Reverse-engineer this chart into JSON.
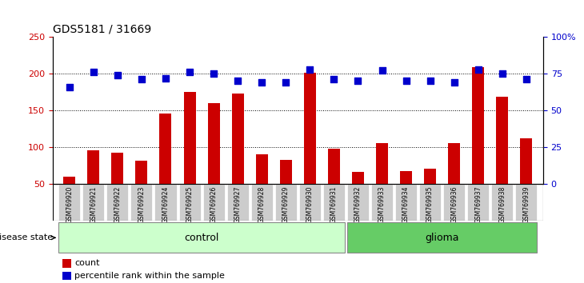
{
  "title": "GDS5181 / 31669",
  "samples": [
    "GSM769920",
    "GSM769921",
    "GSM769922",
    "GSM769923",
    "GSM769924",
    "GSM769925",
    "GSM769926",
    "GSM769927",
    "GSM769928",
    "GSM769929",
    "GSM769930",
    "GSM769931",
    "GSM769932",
    "GSM769933",
    "GSM769934",
    "GSM769935",
    "GSM769936",
    "GSM769937",
    "GSM769938",
    "GSM769939"
  ],
  "counts": [
    60,
    96,
    92,
    82,
    146,
    175,
    160,
    173,
    90,
    83,
    201,
    98,
    66,
    105,
    68,
    71,
    105,
    209,
    168,
    112
  ],
  "percentiles": [
    66,
    76,
    74,
    71,
    72,
    76,
    75,
    70,
    69,
    69,
    78,
    71,
    70,
    77,
    70,
    70,
    69,
    78,
    75,
    71
  ],
  "control_count": 12,
  "glioma_count": 8,
  "bar_color": "#cc0000",
  "dot_color": "#0000cc",
  "ylim_left": [
    50,
    250
  ],
  "ylim_right": [
    0,
    100
  ],
  "yticks_left": [
    50,
    100,
    150,
    200,
    250
  ],
  "yticks_right": [
    0,
    25,
    50,
    75,
    100
  ],
  "yticklabels_right": [
    "0",
    "25",
    "50",
    "75",
    "100%"
  ],
  "grid_values": [
    100,
    150,
    200
  ],
  "control_color": "#ccffcc",
  "glioma_color": "#66cc66",
  "tick_area_color": "#cccccc",
  "disease_state_label": "disease state",
  "control_label": "control",
  "glioma_label": "glioma",
  "legend_count_label": "count",
  "legend_pct_label": "percentile rank within the sample"
}
